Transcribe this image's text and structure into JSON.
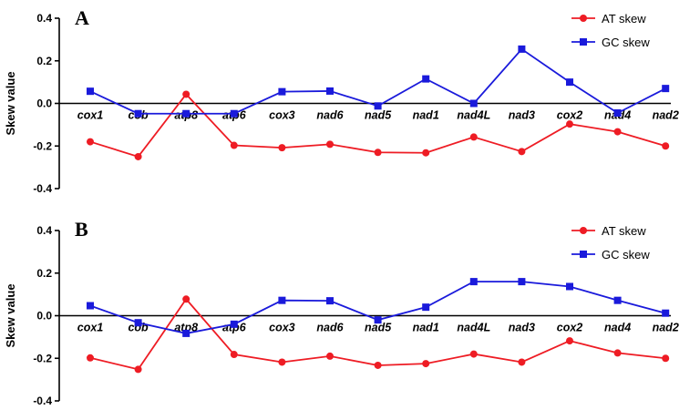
{
  "chart_data": [
    {
      "type": "line",
      "panel_label": "A",
      "ylabel": "Skew value",
      "ylim": [
        -0.4,
        0.4
      ],
      "yticks": [
        0.4,
        0.2,
        0.0,
        -0.2,
        -0.4
      ],
      "ytick_labels": [
        "0.4",
        "0.2",
        "0.0",
        "-0.2",
        "-0.4"
      ],
      "categories": [
        "cox1",
        "cob",
        "atp8",
        "atp6",
        "cox3",
        "nad6",
        "nad5",
        "nad1",
        "nad4L",
        "nad3",
        "cox2",
        "nad4",
        "nad2"
      ],
      "legend_position": "top-right",
      "grid": false,
      "series": [
        {
          "name": "AT skew",
          "color": "#ee1c24",
          "marker": "circle",
          "values": [
            -0.18,
            -0.25,
            0.043,
            -0.197,
            -0.208,
            -0.192,
            -0.23,
            -0.232,
            -0.158,
            -0.226,
            -0.097,
            -0.133,
            -0.2
          ]
        },
        {
          "name": "GC skew",
          "color": "#1a1adb",
          "marker": "square",
          "values": [
            0.057,
            -0.048,
            -0.048,
            -0.048,
            0.055,
            0.058,
            -0.012,
            0.115,
            0.0,
            0.255,
            0.1,
            -0.045,
            0.07
          ]
        }
      ]
    },
    {
      "type": "line",
      "panel_label": "B",
      "ylabel": "Skew value",
      "ylim": [
        -0.4,
        0.4
      ],
      "yticks": [
        0.4,
        0.2,
        0.0,
        -0.2,
        -0.4
      ],
      "ytick_labels": [
        "0.4",
        "0.2",
        "0.0",
        "-0.2",
        "-0.4"
      ],
      "categories": [
        "cox1",
        "cob",
        "atp8",
        "atp6",
        "cox3",
        "nad6",
        "nad5",
        "nad1",
        "nad4L",
        "nad3",
        "cox2",
        "nad4",
        "nad2"
      ],
      "legend_position": "top-right",
      "grid": false,
      "series": [
        {
          "name": "AT skew",
          "color": "#ee1c24",
          "marker": "circle",
          "values": [
            -0.198,
            -0.252,
            0.078,
            -0.182,
            -0.218,
            -0.19,
            -0.233,
            -0.225,
            -0.18,
            -0.218,
            -0.118,
            -0.175,
            -0.2
          ]
        },
        {
          "name": "GC skew",
          "color": "#1a1adb",
          "marker": "square",
          "values": [
            0.047,
            -0.033,
            -0.083,
            -0.04,
            0.072,
            0.07,
            -0.02,
            0.04,
            0.16,
            0.16,
            0.137,
            0.072,
            0.012
          ]
        }
      ]
    }
  ]
}
